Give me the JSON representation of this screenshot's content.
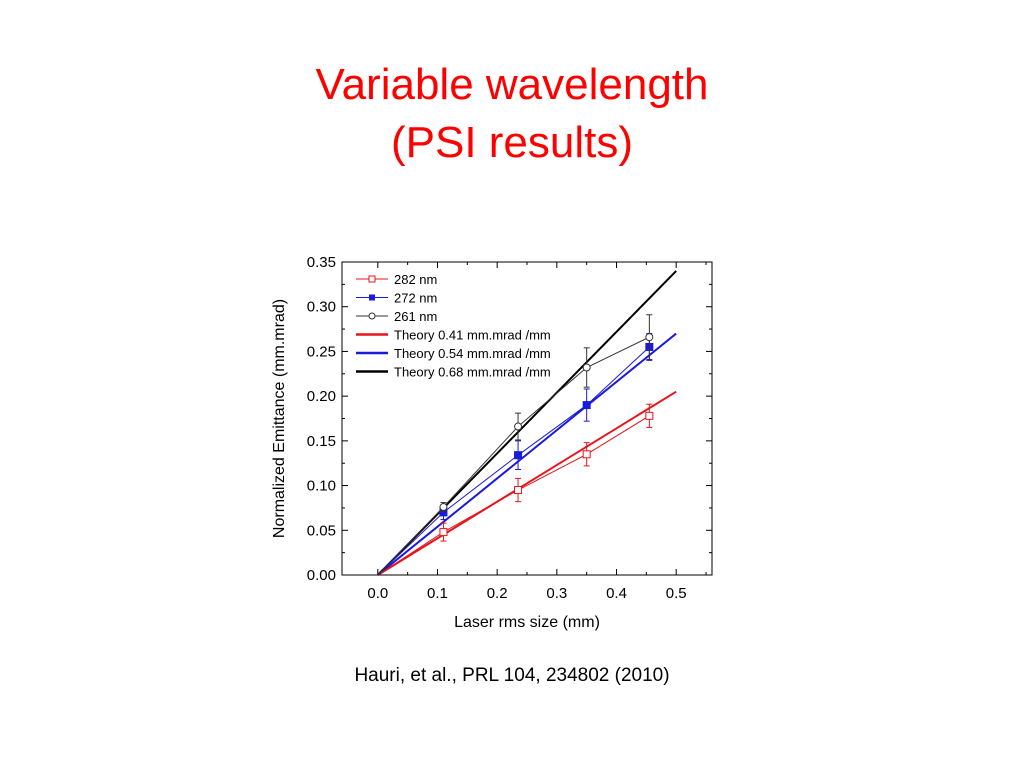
{
  "slide": {
    "title_line1": "Variable wavelength",
    "title_line2": "(PSI results)",
    "citation": "Hauri, et al., PRL 104, 234802 (2010)",
    "title_color": "#ff0000"
  },
  "chart_data": {
    "type": "line",
    "xlabel": "Laser rms size (mm)",
    "ylabel": "Normalized Emittance (mm.mrad)",
    "xlim": [
      -0.06,
      0.56
    ],
    "ylim": [
      0,
      0.35
    ],
    "xticks": [
      "0.0",
      "0.1",
      "0.2",
      "0.3",
      "0.4",
      "0.5"
    ],
    "yticks": [
      "0.00",
      "0.05",
      "0.10",
      "0.15",
      "0.20",
      "0.25",
      "0.30",
      "0.35"
    ],
    "grid": false,
    "legend_position": "top-left",
    "measured": [
      {
        "name": "282 nm",
        "color": "#e8141c",
        "marker": "open-square",
        "x": [
          0.0,
          0.11,
          0.235,
          0.35,
          0.455
        ],
        "y": [
          0.0,
          0.048,
          0.095,
          0.135,
          0.178
        ],
        "err": [
          0,
          0.01,
          0.013,
          0.013,
          0.013
        ]
      },
      {
        "name": "272 nm",
        "color": "#1a1adc",
        "marker": "filled-square",
        "x": [
          0.0,
          0.11,
          0.235,
          0.35,
          0.455
        ],
        "y": [
          0.0,
          0.07,
          0.134,
          0.19,
          0.255
        ],
        "err": [
          0,
          0.008,
          0.016,
          0.018,
          0.015
        ]
      },
      {
        "name": "261 nm",
        "color": "#333333",
        "marker": "open-circle",
        "x": [
          0.0,
          0.11,
          0.235,
          0.35,
          0.455
        ],
        "y": [
          0.0,
          0.076,
          0.166,
          0.232,
          0.266
        ],
        "err": [
          0,
          0.005,
          0.015,
          0.022,
          0.025
        ]
      }
    ],
    "theory": [
      {
        "name": "Theory 0.41 mm.mrad /mm",
        "color": "#e8141c",
        "slope": 0.41,
        "x": [
          0.0,
          0.5
        ]
      },
      {
        "name": "Theory 0.54 mm.mrad /mm",
        "color": "#1a1adc",
        "slope": 0.54,
        "x": [
          0.0,
          0.5
        ]
      },
      {
        "name": "Theory 0.68 mm.mrad /mm",
        "color": "#000000",
        "slope": 0.68,
        "x": [
          0.0,
          0.5
        ]
      }
    ]
  }
}
